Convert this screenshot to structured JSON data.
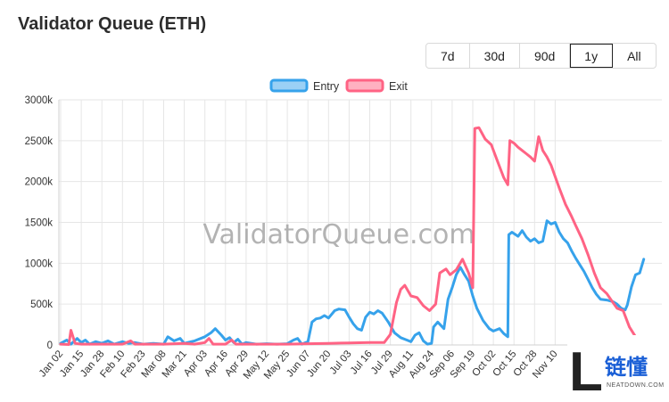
{
  "page": {
    "title": "Validator Queue (ETH)"
  },
  "range_buttons": [
    {
      "label": "7d",
      "active": false
    },
    {
      "label": "30d",
      "active": false
    },
    {
      "label": "90d",
      "active": false
    },
    {
      "label": "1y",
      "active": true
    },
    {
      "label": "All",
      "active": false
    }
  ],
  "watermark": "ValidatorQueue.com",
  "logo": {
    "main": "链懂",
    "sub": "NEATDOWN.COM",
    "letter": "L",
    "color": "#1a5fd6"
  },
  "chart_data": {
    "type": "line",
    "ylim": [
      0,
      3000000
    ],
    "yticks": [
      {
        "value": 0,
        "label": "0"
      },
      {
        "value": 500000,
        "label": "500k"
      },
      {
        "value": 1000000,
        "label": "1000k"
      },
      {
        "value": 1500000,
        "label": "1500k"
      },
      {
        "value": 2000000,
        "label": "2000k"
      },
      {
        "value": 2500000,
        "label": "2500k"
      },
      {
        "value": 3000000,
        "label": "3000k"
      }
    ],
    "xticks": [
      "Jan 02",
      "Jan 15",
      "Jan 28",
      "Feb 10",
      "Feb 23",
      "Mar 08",
      "Mar 21",
      "Apr 03",
      "Apr 16",
      "Apr 29",
      "May 12",
      "May 25",
      "Jun 07",
      "Jun 20",
      "Jul 03",
      "Jul 16",
      "Jul 29",
      "Aug 11",
      "Aug 24",
      "Sep 06",
      "Sep 19",
      "Oct 02",
      "Oct 15",
      "Oct 28",
      "Nov 10"
    ],
    "x_index_range": [
      0,
      26.3
    ],
    "grid": true,
    "legend_position": "top",
    "series": [
      {
        "name": "Entry",
        "color": "#36a2eb",
        "fill": "#9ad0f5",
        "points": [
          [
            0,
            20000
          ],
          [
            0.3,
            60000
          ],
          [
            0.5,
            10000
          ],
          [
            0.8,
            80000
          ],
          [
            1,
            30000
          ],
          [
            1.2,
            60000
          ],
          [
            1.4,
            10000
          ],
          [
            1.7,
            40000
          ],
          [
            2,
            20000
          ],
          [
            2.3,
            50000
          ],
          [
            2.6,
            10000
          ],
          [
            3,
            40000
          ],
          [
            3.3,
            20000
          ],
          [
            3.6,
            30000
          ],
          [
            4,
            10000
          ],
          [
            4.5,
            20000
          ],
          [
            5,
            10000
          ],
          [
            5.2,
            100000
          ],
          [
            5.5,
            50000
          ],
          [
            5.8,
            80000
          ],
          [
            6,
            20000
          ],
          [
            6.5,
            50000
          ],
          [
            7,
            100000
          ],
          [
            7.3,
            150000
          ],
          [
            7.5,
            200000
          ],
          [
            7.8,
            120000
          ],
          [
            8,
            60000
          ],
          [
            8.2,
            90000
          ],
          [
            8.4,
            30000
          ],
          [
            8.6,
            70000
          ],
          [
            8.8,
            10000
          ],
          [
            9,
            30000
          ],
          [
            9.5,
            10000
          ],
          [
            10,
            15000
          ],
          [
            10.5,
            10000
          ],
          [
            11,
            15000
          ],
          [
            11.3,
            60000
          ],
          [
            11.5,
            80000
          ],
          [
            11.7,
            10000
          ],
          [
            12,
            40000
          ],
          [
            12.2,
            280000
          ],
          [
            12.4,
            320000
          ],
          [
            12.6,
            330000
          ],
          [
            12.8,
            360000
          ],
          [
            13,
            330000
          ],
          [
            13.3,
            420000
          ],
          [
            13.5,
            440000
          ],
          [
            13.8,
            430000
          ],
          [
            14,
            340000
          ],
          [
            14.2,
            260000
          ],
          [
            14.4,
            200000
          ],
          [
            14.6,
            180000
          ],
          [
            14.8,
            340000
          ],
          [
            15,
            400000
          ],
          [
            15.2,
            380000
          ],
          [
            15.4,
            420000
          ],
          [
            15.6,
            390000
          ],
          [
            15.9,
            280000
          ],
          [
            16.2,
            150000
          ],
          [
            16.5,
            90000
          ],
          [
            16.8,
            60000
          ],
          [
            17,
            40000
          ],
          [
            17.2,
            120000
          ],
          [
            17.4,
            150000
          ],
          [
            17.6,
            50000
          ],
          [
            17.8,
            10000
          ],
          [
            18,
            20000
          ],
          [
            18.1,
            220000
          ],
          [
            18.3,
            280000
          ],
          [
            18.6,
            200000
          ],
          [
            18.8,
            560000
          ],
          [
            19,
            700000
          ],
          [
            19.2,
            860000
          ],
          [
            19.4,
            950000
          ],
          [
            19.6,
            860000
          ],
          [
            19.8,
            780000
          ],
          [
            20,
            600000
          ],
          [
            20.2,
            450000
          ],
          [
            20.5,
            300000
          ],
          [
            20.8,
            200000
          ],
          [
            21,
            170000
          ],
          [
            21.3,
            200000
          ],
          [
            21.5,
            140000
          ],
          [
            21.7,
            100000
          ],
          [
            21.75,
            1350000
          ],
          [
            21.9,
            1380000
          ],
          [
            22.2,
            1330000
          ],
          [
            22.4,
            1400000
          ],
          [
            22.6,
            1320000
          ],
          [
            22.8,
            1270000
          ],
          [
            23,
            1300000
          ],
          [
            23.2,
            1250000
          ],
          [
            23.4,
            1270000
          ],
          [
            23.6,
            1520000
          ],
          [
            23.8,
            1480000
          ],
          [
            24,
            1500000
          ],
          [
            24.2,
            1380000
          ],
          [
            24.4,
            1300000
          ],
          [
            24.6,
            1250000
          ],
          [
            24.8,
            1150000
          ],
          [
            25,
            1060000
          ],
          [
            25.2,
            980000
          ],
          [
            25.4,
            900000
          ],
          [
            25.6,
            800000
          ],
          [
            25.8,
            700000
          ],
          [
            26,
            620000
          ],
          [
            26.2,
            560000
          ],
          [
            26.5,
            550000
          ],
          [
            26.8,
            530000
          ],
          [
            27,
            500000
          ],
          [
            27.2,
            450000
          ],
          [
            27.4,
            430000
          ],
          [
            27.5,
            490000
          ],
          [
            27.7,
            710000
          ],
          [
            27.9,
            860000
          ],
          [
            28.1,
            880000
          ],
          [
            28.3,
            1050000
          ]
        ]
      },
      {
        "name": "Exit",
        "color": "#ff6384",
        "fill": "#ffb1c1",
        "points": [
          [
            0,
            10000
          ],
          [
            0.4,
            5000
          ],
          [
            0.5,
            180000
          ],
          [
            0.7,
            20000
          ],
          [
            1,
            10000
          ],
          [
            2,
            10000
          ],
          [
            3,
            10000
          ],
          [
            3.4,
            50000
          ],
          [
            3.6,
            10000
          ],
          [
            4,
            10000
          ],
          [
            5,
            10000
          ],
          [
            6,
            20000
          ],
          [
            6.5,
            10000
          ],
          [
            7,
            30000
          ],
          [
            7.2,
            80000
          ],
          [
            7.4,
            10000
          ],
          [
            8,
            10000
          ],
          [
            8.3,
            60000
          ],
          [
            8.5,
            10000
          ],
          [
            9,
            10000
          ],
          [
            10,
            10000
          ],
          [
            11,
            10000
          ],
          [
            12,
            15000
          ],
          [
            13,
            20000
          ],
          [
            14,
            25000
          ],
          [
            15,
            30000
          ],
          [
            15.7,
            30000
          ],
          [
            16,
            130000
          ],
          [
            16.3,
            520000
          ],
          [
            16.5,
            680000
          ],
          [
            16.7,
            730000
          ],
          [
            17,
            600000
          ],
          [
            17.3,
            580000
          ],
          [
            17.6,
            480000
          ],
          [
            17.9,
            420000
          ],
          [
            18.2,
            500000
          ],
          [
            18.4,
            880000
          ],
          [
            18.7,
            930000
          ],
          [
            18.9,
            860000
          ],
          [
            19.2,
            920000
          ],
          [
            19.5,
            1050000
          ],
          [
            19.8,
            880000
          ],
          [
            20,
            700000
          ],
          [
            20.1,
            2650000
          ],
          [
            20.3,
            2660000
          ],
          [
            20.6,
            2520000
          ],
          [
            20.9,
            2450000
          ],
          [
            21.2,
            2250000
          ],
          [
            21.5,
            2050000
          ],
          [
            21.7,
            1960000
          ],
          [
            21.8,
            2500000
          ],
          [
            22,
            2470000
          ],
          [
            22.2,
            2420000
          ],
          [
            22.4,
            2380000
          ],
          [
            22.6,
            2340000
          ],
          [
            22.8,
            2300000
          ],
          [
            23,
            2250000
          ],
          [
            23.2,
            2550000
          ],
          [
            23.4,
            2380000
          ],
          [
            23.6,
            2300000
          ],
          [
            23.8,
            2200000
          ],
          [
            24,
            2060000
          ],
          [
            24.2,
            1920000
          ],
          [
            24.5,
            1720000
          ],
          [
            24.8,
            1570000
          ],
          [
            25,
            1460000
          ],
          [
            25.3,
            1300000
          ],
          [
            25.6,
            1100000
          ],
          [
            25.9,
            880000
          ],
          [
            26.2,
            700000
          ],
          [
            26.5,
            630000
          ],
          [
            26.8,
            520000
          ],
          [
            27,
            450000
          ],
          [
            27.3,
            420000
          ],
          [
            27.6,
            220000
          ],
          [
            27.9,
            100000
          ],
          [
            28.1,
            60000
          ]
        ]
      }
    ]
  }
}
